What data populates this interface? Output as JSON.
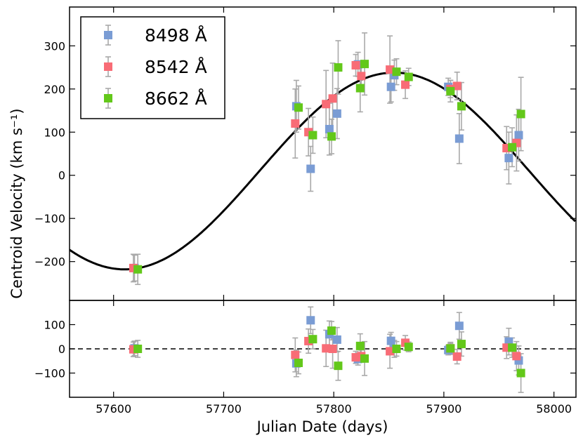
{
  "chart_data": [
    {
      "type": "scatter",
      "panel": "top",
      "title": "",
      "xlabel": "Julian Date (days)",
      "ylabel": "Centroid Velocity (km s⁻¹)",
      "xlim": [
        57560,
        58020
      ],
      "ylim": [
        -290,
        390
      ],
      "yticks": [
        -200,
        -100,
        0,
        100,
        200,
        300
      ],
      "ytick_labels": [
        "−200",
        "−100",
        "0",
        "100",
        "200",
        "300"
      ],
      "grid": false,
      "legend_position": "top-left",
      "model_curve": {
        "type": "sinusoid",
        "gamma": 10,
        "amplitude": 228,
        "period": 490,
        "peak_date": 57855,
        "color": "#000000"
      },
      "series": [
        {
          "name": "8498 Å",
          "color": "#7a9cd4",
          "x": [
            57619,
            57766,
            57779,
            57796,
            57803,
            57822,
            57852,
            57855,
            57904,
            57914,
            57959,
            57968
          ],
          "y": [
            -215,
            160,
            15,
            107,
            143,
            257,
            205,
            232,
            205,
            85,
            40,
            93
          ],
          "err": [
            30,
            60,
            52,
            60,
            58,
            28,
            35,
            35,
            20,
            58,
            60,
            60
          ]
        },
        {
          "name": "8542 Å",
          "color": "#f86c76",
          "x": [
            57618,
            57765,
            57777,
            57793,
            57799,
            57820,
            57825,
            57851,
            57865,
            57906,
            57912,
            57957,
            57966
          ],
          "y": [
            -215,
            120,
            100,
            165,
            178,
            255,
            230,
            245,
            210,
            200,
            207,
            63,
            75
          ],
          "err": [
            32,
            80,
            55,
            78,
            82,
            25,
            25,
            78,
            32,
            20,
            32,
            50,
            65
          ]
        },
        {
          "name": "8662 Å",
          "color": "#63c81a",
          "x": [
            57622,
            57768,
            57781,
            57798,
            57804,
            57824,
            57828,
            57857,
            57868,
            57906,
            57916,
            57962,
            57970
          ],
          "y": [
            -218,
            157,
            93,
            90,
            250,
            202,
            258,
            240,
            228,
            195,
            160,
            65,
            142
          ],
          "err": [
            35,
            50,
            42,
            40,
            62,
            55,
            72,
            30,
            20,
            25,
            55,
            45,
            85
          ]
        }
      ]
    },
    {
      "type": "scatter",
      "panel": "bottom",
      "xlabel": "Julian Date (days)",
      "ylabel": "",
      "xlim": [
        57560,
        58020
      ],
      "xticks": [
        57600,
        57700,
        57800,
        57900,
        58000
      ],
      "xtick_labels": [
        "57600",
        "57700",
        "57800",
        "57900",
        "58000"
      ],
      "ylim": [
        -200,
        200
      ],
      "yticks": [
        -100,
        0,
        100
      ],
      "ytick_labels": [
        "−100",
        "0",
        "100"
      ],
      "reference_line": {
        "y": 0,
        "style": "dashed"
      },
      "series": [
        {
          "name": "8498 Å",
          "color": "#7a9cd4",
          "x": [
            57619,
            57766,
            57779,
            57796,
            57803,
            57822,
            57852,
            57855,
            57904,
            57914,
            57959,
            57968
          ],
          "y": [
            2,
            -60,
            118,
            60,
            38,
            -42,
            33,
            0,
            -5,
            95,
            30,
            -48
          ],
          "err": [
            30,
            55,
            55,
            55,
            50,
            25,
            35,
            35,
            20,
            55,
            55,
            60
          ]
        },
        {
          "name": "8542 Å",
          "color": "#f86c76",
          "x": [
            57618,
            57765,
            57777,
            57793,
            57799,
            57820,
            57825,
            57851,
            57865,
            57906,
            57912,
            57957,
            57966
          ],
          "y": [
            -2,
            -25,
            32,
            2,
            0,
            -35,
            -30,
            -10,
            25,
            2,
            -32,
            5,
            -30
          ],
          "err": [
            30,
            70,
            50,
            75,
            80,
            25,
            25,
            70,
            30,
            20,
            30,
            45,
            60
          ]
        },
        {
          "name": "8662 Å",
          "color": "#63c81a",
          "x": [
            57622,
            57768,
            57781,
            57798,
            57804,
            57824,
            57828,
            57857,
            57868,
            57906,
            57916,
            57962,
            57970
          ],
          "y": [
            0,
            -58,
            40,
            75,
            -70,
            12,
            -40,
            0,
            8,
            2,
            20,
            5,
            -100
          ],
          "err": [
            35,
            45,
            40,
            38,
            60,
            50,
            70,
            30,
            20,
            25,
            50,
            40,
            80
          ]
        }
      ]
    }
  ]
}
